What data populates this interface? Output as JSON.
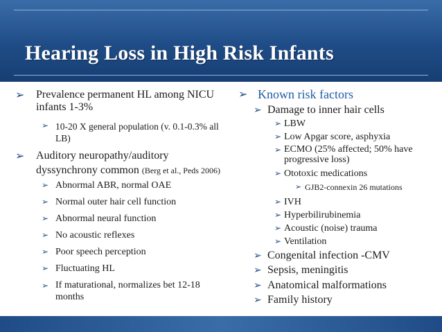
{
  "title": "Hearing Loss in High Risk Infants",
  "left": {
    "prevalence": "Prevalence permanent HL among NICU infants 1-3%",
    "general_population": "10-20 X general population (v. 0.1-0.3% all LB)",
    "auditory_neuropathy": "Auditory neuropathy/auditory dyssynchrony common",
    "citation": "(Berg et al., Peds 2006)",
    "sub_items": [
      "Abnormal ABR, normal OAE",
      "Normal outer hair cell function",
      "Abnormal neural function",
      "No acoustic reflexes",
      "Poor speech perception",
      "Fluctuating HL",
      "If maturational, normalizes bet 12-18 months"
    ]
  },
  "right": {
    "known_risk_factors": "Known risk factors",
    "damage": "Damage to inner hair cells",
    "lbw": "LBW",
    "apgar": "Low Apgar score, asphyxia",
    "ecmo": "ECMO (25% affected; 50% have progressive loss)",
    "ototoxic": "Ototoxic medications",
    "gjb2": "GJB2-connexin 26 mutations",
    "ivh": "IVH",
    "hyperbili": "Hyperbilirubinemia",
    "acoustic": "Acoustic (noise) trauma",
    "ventilation": "Ventilation",
    "congenital": "Congenital infection -CMV",
    "sepsis": "Sepsis, meningitis",
    "anatomical": "Anatomical malformations",
    "family": "Family history"
  },
  "icons": {
    "bullet": "arrow-bullet-icon"
  },
  "colors": {
    "banner": "#1f4c86",
    "accent": "#1f5ca3",
    "text": "#1a1a1a"
  }
}
